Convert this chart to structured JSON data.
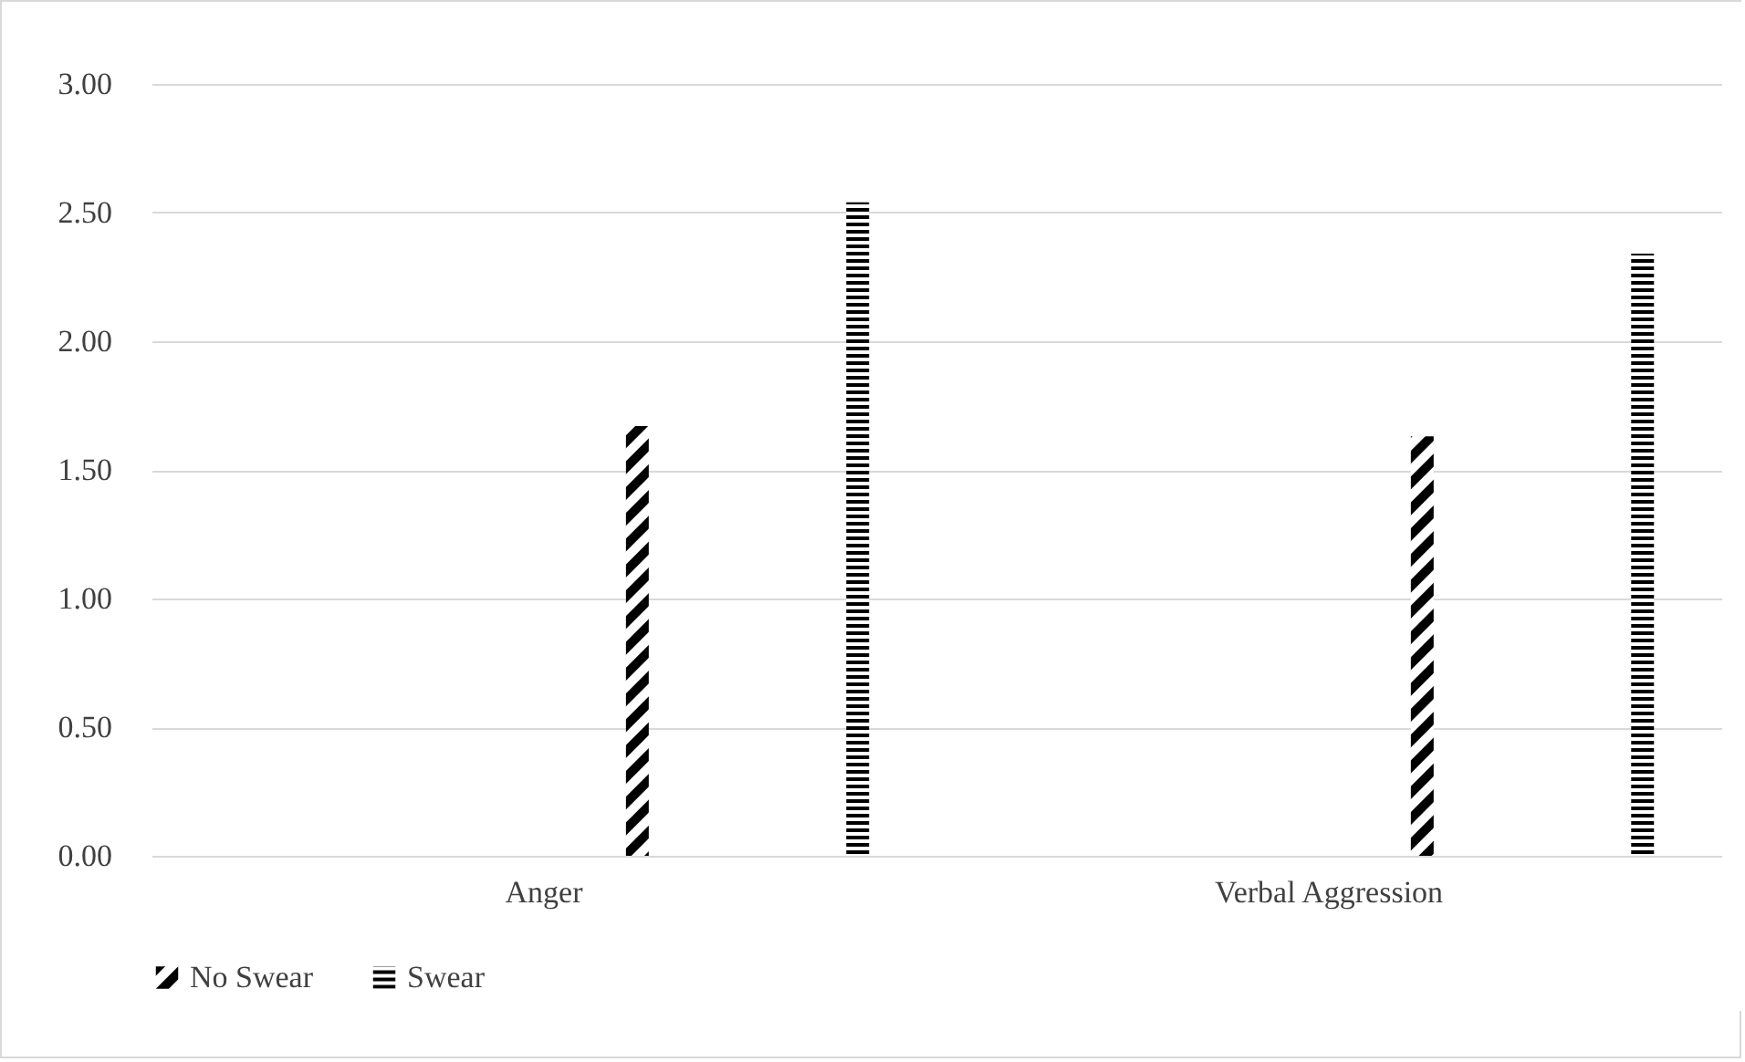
{
  "chart_data": {
    "type": "bar",
    "categories": [
      "Anger",
      "Verbal Aggression"
    ],
    "series": [
      {
        "name": "No Swear",
        "color": "#000000",
        "values": [
          1.67,
          1.63
        ]
      },
      {
        "name": "Swear",
        "color": "#000000",
        "values": [
          2.54,
          2.34
        ]
      }
    ],
    "ylim": [
      0,
      3
    ],
    "yticks": [
      {
        "value": 0,
        "label": "0.00"
      },
      {
        "value": 0.5,
        "label": "0.50"
      },
      {
        "value": 1,
        "label": "1.00"
      },
      {
        "value": 1.5,
        "label": "1.50"
      },
      {
        "value": 2,
        "label": "2.00"
      },
      {
        "value": 2.5,
        "label": "2.50"
      },
      {
        "value": 3,
        "label": "3.00"
      }
    ],
    "grid": "y",
    "legend": "bottom"
  }
}
